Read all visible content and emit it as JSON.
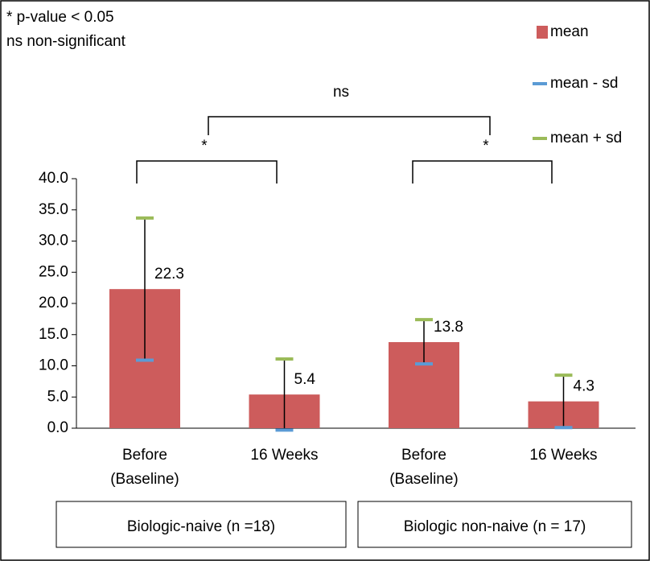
{
  "chart_data": {
    "type": "bar",
    "annotations": [
      "* p-value < 0.05",
      "ns non-significant"
    ],
    "significance": [
      "ns",
      "*",
      "*"
    ],
    "groups": [
      "Biologic-naive (n =18)",
      "Biologic non-naive (n = 17)"
    ],
    "categories": [
      [
        "Before",
        "(Baseline)"
      ],
      [
        "16 Weeks"
      ],
      [
        "Before",
        "(Baseline)"
      ],
      [
        "16 Weeks"
      ]
    ],
    "series": [
      {
        "name": "mean",
        "color": "#cd5c5c",
        "values": [
          22.3,
          5.4,
          13.8,
          4.3
        ]
      },
      {
        "name": "mean - sd",
        "color": "#5b9bd5",
        "values": [
          10.9,
          -0.3,
          10.3,
          0.1
        ]
      },
      {
        "name": "mean + sd",
        "color": "#9bbb59",
        "values": [
          33.7,
          11.1,
          17.4,
          8.5
        ]
      }
    ],
    "ylim": [
      0,
      40
    ],
    "yticks": [
      {
        "value": 0,
        "label": "0.0"
      },
      {
        "value": 5,
        "label": "5.0"
      },
      {
        "value": 10,
        "label": "10.0"
      },
      {
        "value": 15,
        "label": "15.0"
      },
      {
        "value": 20,
        "label": "20.0"
      },
      {
        "value": 25,
        "label": "25.0"
      },
      {
        "value": 30,
        "label": "30.0"
      },
      {
        "value": 35,
        "label": "35.0"
      },
      {
        "value": 40,
        "label": "40.0"
      }
    ]
  }
}
